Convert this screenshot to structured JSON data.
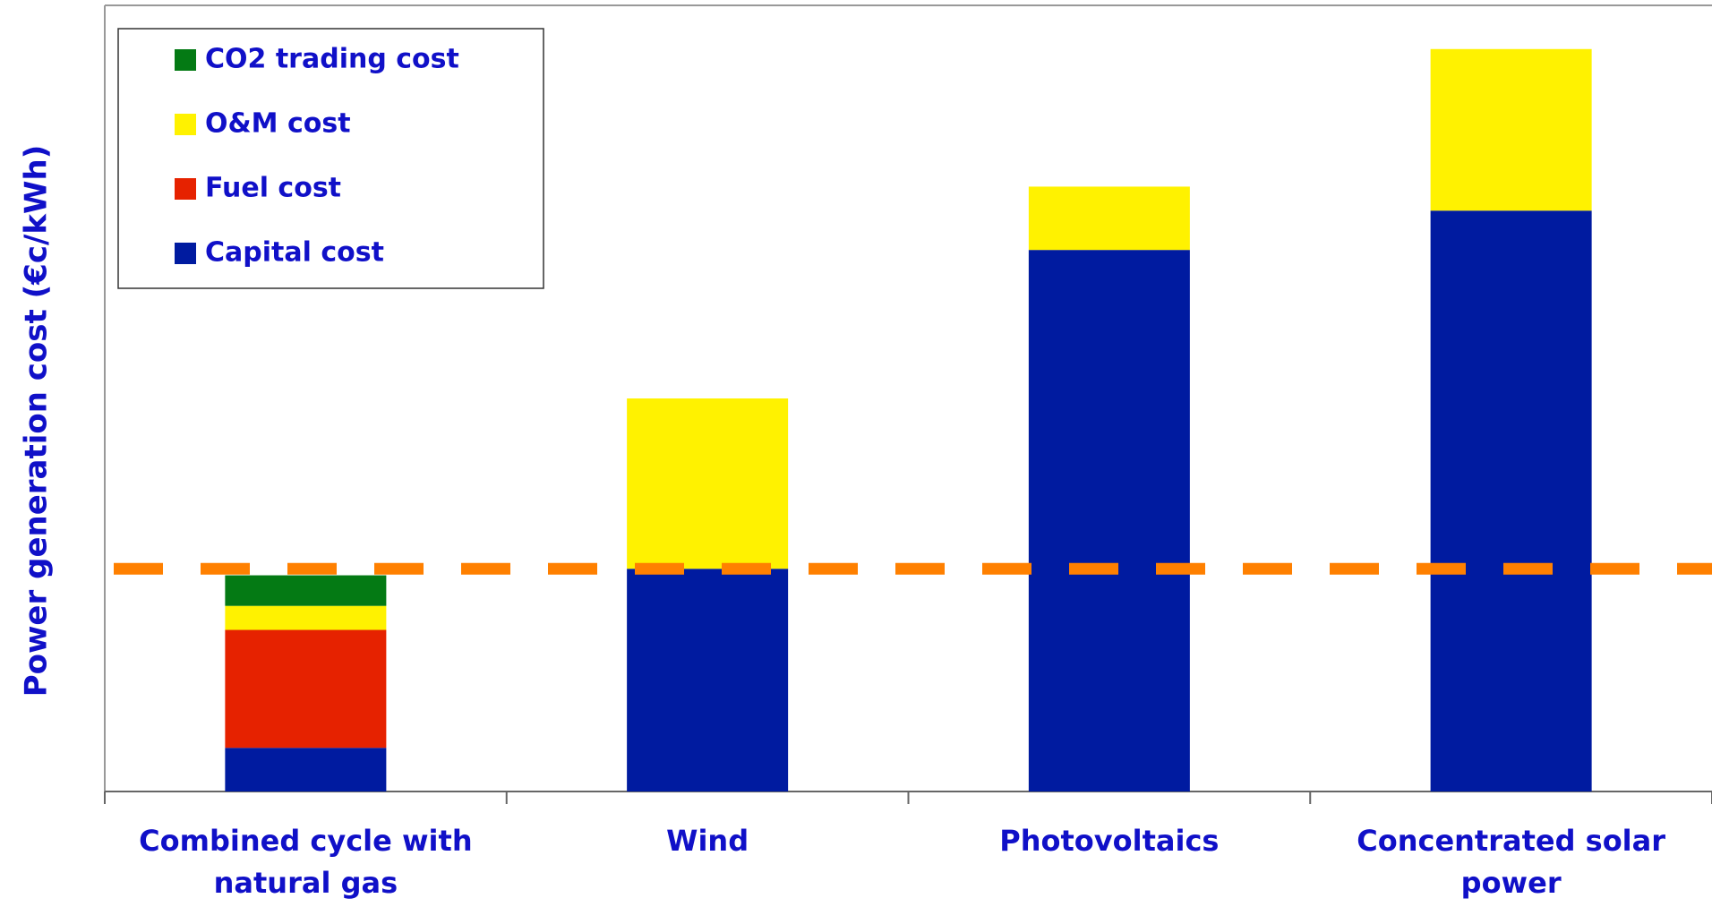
{
  "chart_data": {
    "type": "stacked_bar",
    "y_label": "Power generation cost (€c/kWh)",
    "categories": [
      "Combined cycle with\nnatural gas",
      "Wind",
      "Photovoltaics",
      "Concentrated solar\npower"
    ],
    "series": [
      {
        "name": "Capital cost",
        "color": "#001ba0",
        "values": [
          2.0,
          10.2,
          24.8,
          26.6
        ]
      },
      {
        "name": "Fuel cost",
        "color": "#e62200",
        "values": [
          5.4,
          0,
          0,
          0
        ]
      },
      {
        "name": "O&M cost",
        "color": "#fff200",
        "values": [
          1.1,
          7.8,
          2.9,
          7.4
        ]
      },
      {
        "name": "CO2 trading cost",
        "color": "#047a14",
        "values": [
          1.4,
          0,
          0,
          0
        ]
      }
    ],
    "reference_line": {
      "value": 10.2,
      "color": "#ff8000"
    },
    "ylim": [
      0,
      36
    ],
    "legend": "upper left"
  }
}
